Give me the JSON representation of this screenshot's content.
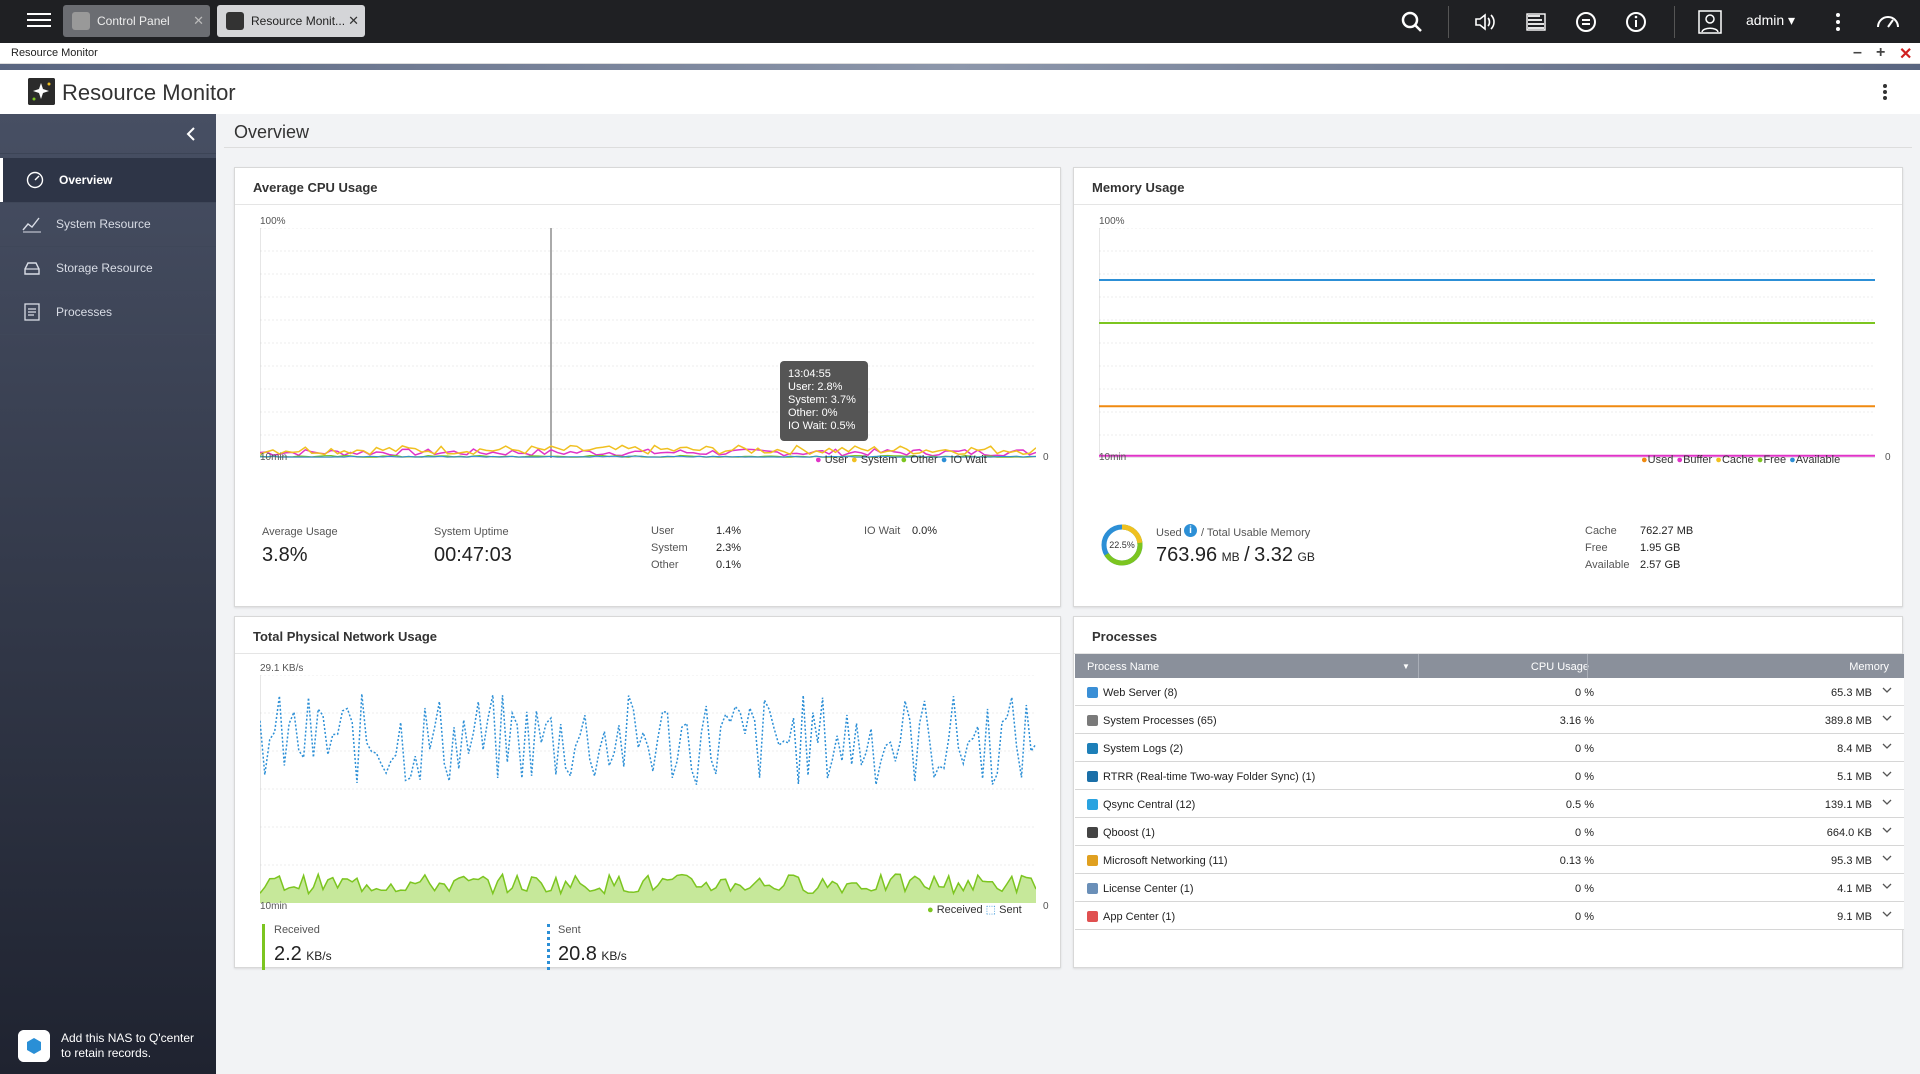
{
  "topbar": {
    "tabs": [
      {
        "label": "Control Panel"
      },
      {
        "label": "Resource Monit..."
      }
    ],
    "user": "admin"
  },
  "window": {
    "title": "Resource Monitor"
  },
  "app": {
    "title": "Resource Monitor"
  },
  "sidebar": {
    "items": [
      {
        "label": "Overview",
        "icon": "dashboard-icon",
        "active": true
      },
      {
        "label": "System Resource",
        "icon": "line-chart-icon"
      },
      {
        "label": "Storage Resource",
        "icon": "storage-icon"
      },
      {
        "label": "Processes",
        "icon": "list-icon"
      }
    ],
    "qcenter": {
      "line1": "Add this NAS to Q'center",
      "line2": "to retain records."
    }
  },
  "page": {
    "title": "Overview"
  },
  "cpu": {
    "title": "Average CPU Usage",
    "ymax": "100%",
    "xlabel": "10min",
    "zero": "0",
    "legend": [
      "User",
      "System",
      "Other",
      "IO Wait"
    ],
    "tooltip": {
      "time": "13:04:55",
      "user": "User: 2.8%",
      "system": "System: 3.7%",
      "other": "Other: 0%",
      "iowait": "IO Wait: 0.5%"
    },
    "avg_label": "Average Usage",
    "avg_value": "3.8%",
    "uptime_label": "System Uptime",
    "uptime_value": "00:47:03",
    "user_label": "User",
    "user_value": "1.4%",
    "system_label": "System",
    "system_value": "2.3%",
    "other_label": "Other",
    "other_value": "0.1%",
    "iowait_label": "IO Wait",
    "iowait_value": "0.0%"
  },
  "memory": {
    "title": "Memory Usage",
    "ymax": "100%",
    "xlabel": "10min",
    "zero": "0",
    "legend": [
      "Used",
      "Buffer",
      "Cache",
      "Free",
      "Available"
    ],
    "donut_pct": "22.5%",
    "used_label": "Used",
    "total_label": "/ Total Usable Memory",
    "used_value": "763.96",
    "used_unit": "MB",
    "slash": "/",
    "total_value": "3.32",
    "total_unit": "GB",
    "cache_label": "Cache",
    "cache_value": "762.27 MB",
    "free_label": "Free",
    "free_value": "1.95 GB",
    "available_label": "Available",
    "available_value": "2.57 GB"
  },
  "network": {
    "title": "Total Physical Network Usage",
    "ymax": "29.1 KB/s",
    "xlabel": "10min",
    "zero": "0",
    "legend": [
      "Received",
      "Sent"
    ],
    "received_label": "Received",
    "received_value": "2.2",
    "received_unit": "KB/s",
    "sent_label": "Sent",
    "sent_value": "20.8",
    "sent_unit": "KB/s"
  },
  "processes": {
    "title": "Processes",
    "headers": {
      "name": "Process Name",
      "cpu": "CPU Usage",
      "memory": "Memory"
    },
    "rows": [
      {
        "name": "Web Server (8)",
        "cpu": "0 %",
        "memory": "65.3 MB",
        "color": "#3a8fd6"
      },
      {
        "name": "System Processes (65)",
        "cpu": "3.16 %",
        "memory": "389.8 MB",
        "color": "#7a7a7a"
      },
      {
        "name": "System Logs (2)",
        "cpu": "0 %",
        "memory": "8.4 MB",
        "color": "#1d7fb8"
      },
      {
        "name": "RTRR (Real-time Two-way Folder Sync)  (1)",
        "cpu": "0 %",
        "memory": "5.1 MB",
        "color": "#1a6fa8"
      },
      {
        "name": "Qsync Central (12)",
        "cpu": "0.5 %",
        "memory": "139.1 MB",
        "color": "#2aa3e0"
      },
      {
        "name": "Qboost (1)",
        "cpu": "0 %",
        "memory": "664.0 KB",
        "color": "#444444"
      },
      {
        "name": "Microsoft Networking (11)",
        "cpu": "0.13 %",
        "memory": "95.3 MB",
        "color": "#e0a020"
      },
      {
        "name": "License Center (1)",
        "cpu": "0 %",
        "memory": "4.1 MB",
        "color": "#6a8fb8"
      },
      {
        "name": "App Center (1)",
        "cpu": "0 %",
        "memory": "9.1 MB",
        "color": "#e05050"
      }
    ]
  },
  "chart_data": [
    {
      "type": "line",
      "title": "Average CPU Usage",
      "ylim": [
        0,
        100
      ],
      "x": "last 10min",
      "series": [
        {
          "name": "User",
          "color": "#e033c8",
          "approx_level": 1.4
        },
        {
          "name": "System",
          "color": "#f0c020",
          "approx_level": 2.3
        },
        {
          "name": "Other",
          "color": "#7cc520",
          "approx_level": 0.1
        },
        {
          "name": "IO Wait",
          "color": "#2c8fd6",
          "approx_level": 0.0
        }
      ]
    },
    {
      "type": "line",
      "title": "Memory Usage",
      "ylim": [
        0,
        100
      ],
      "series": [
        {
          "name": "Used",
          "color": "#f08a10",
          "level": 22.5
        },
        {
          "name": "Buffer",
          "color": "#e033c8",
          "level": 1
        },
        {
          "name": "Cache",
          "color": "#f0c020",
          "level": 22.4
        },
        {
          "name": "Free",
          "color": "#7cc520",
          "level": 58.7
        },
        {
          "name": "Available",
          "color": "#2c8fd6",
          "level": 77.4
        }
      ]
    },
    {
      "type": "area",
      "title": "Total Physical Network Usage",
      "ylim": [
        0,
        29.1
      ],
      "series": [
        {
          "name": "Received",
          "color": "#7cc520",
          "approx_level": 2.2
        },
        {
          "name": "Sent",
          "color": "#2c8fd6",
          "approx_level": 20.8
        }
      ]
    }
  ]
}
